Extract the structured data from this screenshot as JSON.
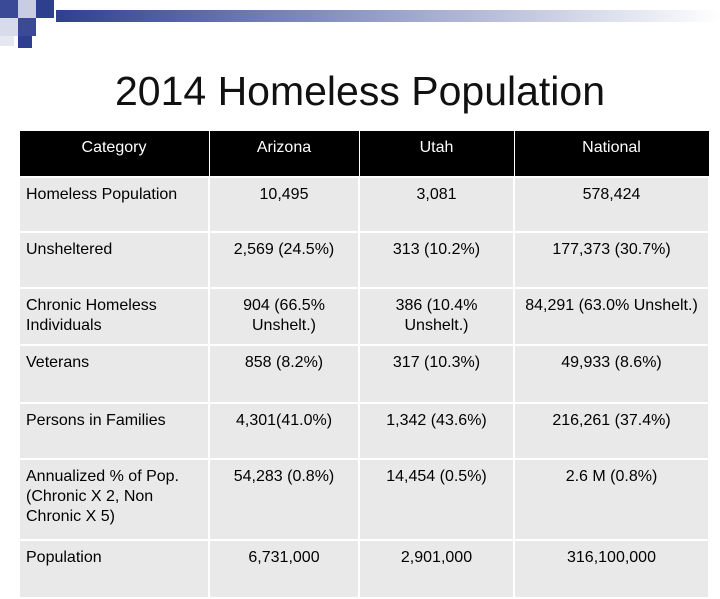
{
  "title": "2014 Homeless Population",
  "table": {
    "headers": [
      "Category",
      "Arizona",
      "Utah",
      "National"
    ],
    "rows": [
      {
        "label": "Homeless Population",
        "arizona": "10,495",
        "utah": "3,081",
        "national": "578,424"
      },
      {
        "label": "Unsheltered",
        "arizona": "2,569 (24.5%)",
        "utah": "313 (10.2%)",
        "national": "177,373 (30.7%)"
      },
      {
        "label": "Chronic Homeless Individuals",
        "arizona": "904 (66.5% Unshelt.)",
        "utah": "386 (10.4% Unshelt.)",
        "national": "84,291 (63.0% Unshelt.)"
      },
      {
        "label": "Veterans",
        "arizona": "858 (8.2%)",
        "utah": "317 (10.3%)",
        "national": "49,933 (8.6%)"
      },
      {
        "label": "Persons in Families",
        "arizona": "4,301(41.0%)",
        "utah": "1,342 (43.6%)",
        "national": "216,261 (37.4%)"
      },
      {
        "label": "Annualized % of Pop. (Chronic X 2, Non Chronic X 5)",
        "arizona": "54,283 (0.8%)",
        "utah": "14,454 (0.5%)",
        "national": "2.6 M (0.8%)"
      },
      {
        "label": "Population",
        "arizona": "6,731,000",
        "utah": "2,901,000",
        "national": "316,100,000"
      }
    ]
  }
}
